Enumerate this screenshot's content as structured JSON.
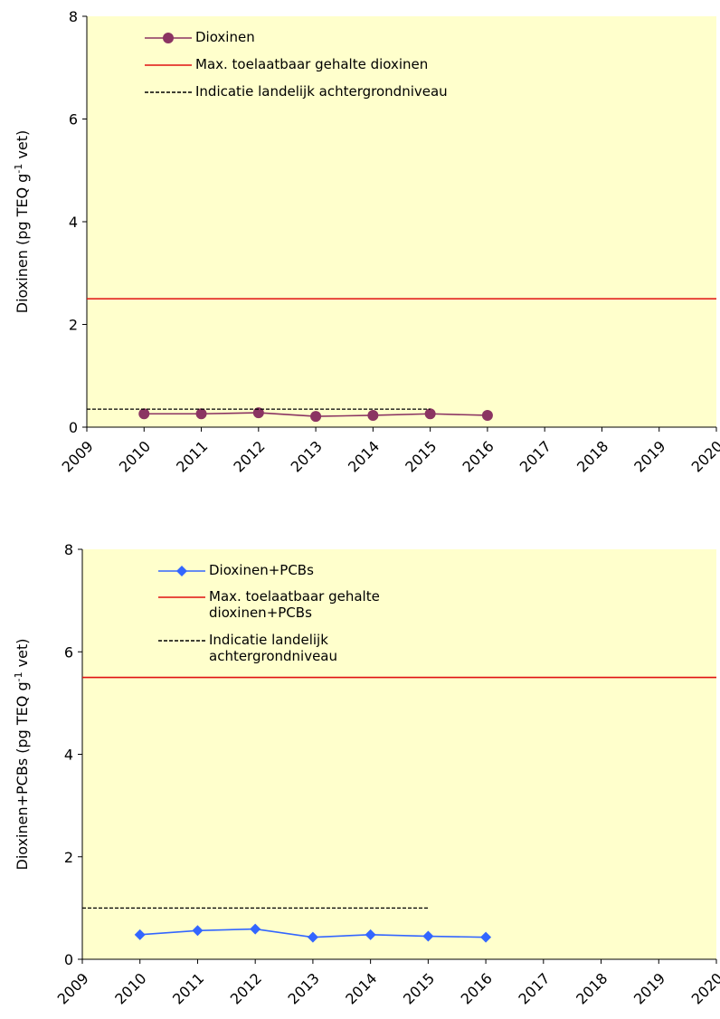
{
  "chart_data": [
    {
      "type": "line",
      "y_label": [
        "Dioxinen  (pg TEQ g",
        "-1",
        " vet)"
      ],
      "xlim": [
        2009,
        2020
      ],
      "xticks": [
        2009,
        2010,
        2011,
        2012,
        2013,
        2014,
        2015,
        2016,
        2017,
        2018,
        2019,
        2020
      ],
      "ylim": [
        0,
        8
      ],
      "yticks": [
        0,
        2,
        4,
        6,
        8
      ],
      "background": "#ffffcc",
      "series": [
        {
          "name": "Dioxinen",
          "color": "#8b3462",
          "marker": "circle",
          "dash": false,
          "x": [
            2010,
            2011,
            2012,
            2013,
            2014,
            2015,
            2016
          ],
          "values": [
            0.26,
            0.26,
            0.28,
            0.21,
            0.23,
            0.26,
            0.23
          ]
        },
        {
          "name": "Max. toelaatbaar gehalte dioxinen",
          "color": "#e01010",
          "marker": null,
          "dash": false,
          "x": [
            2009,
            2020
          ],
          "values": [
            2.5,
            2.5
          ]
        },
        {
          "name": "Indicatie landelijk achtergrondniveau",
          "color": "#000000",
          "marker": null,
          "dash": true,
          "x": [
            2009,
            2015
          ],
          "values": [
            0.35,
            0.35
          ]
        }
      ]
    },
    {
      "type": "line",
      "y_label": [
        "Dioxinen+PCBs  (pg TEQ g",
        "-1",
        " vet)"
      ],
      "xlim": [
        2009,
        2020
      ],
      "xticks": [
        2009,
        2010,
        2011,
        2012,
        2013,
        2014,
        2015,
        2016,
        2017,
        2018,
        2019,
        2020
      ],
      "ylim": [
        0,
        8
      ],
      "yticks": [
        0,
        2,
        4,
        6,
        8
      ],
      "background": "#ffffcc",
      "series": [
        {
          "name": "Dioxinen+PCBs",
          "color": "#3366ff",
          "marker": "diamond",
          "dash": false,
          "x": [
            2010,
            2011,
            2012,
            2013,
            2014,
            2015,
            2016
          ],
          "values": [
            0.48,
            0.56,
            0.59,
            0.43,
            0.48,
            0.45,
            0.43
          ]
        },
        {
          "name": "Max. toelaatbaar gehalte dioxinen+PCBs",
          "color": "#e01010",
          "marker": null,
          "dash": false,
          "x": [
            2009,
            2020
          ],
          "values": [
            5.5,
            5.5
          ]
        },
        {
          "name": "Indicatie landelijk achtergrondniveau",
          "color": "#000000",
          "marker": null,
          "dash": true,
          "x": [
            2009,
            2015
          ],
          "values": [
            1.0,
            1.0
          ]
        }
      ]
    }
  ]
}
